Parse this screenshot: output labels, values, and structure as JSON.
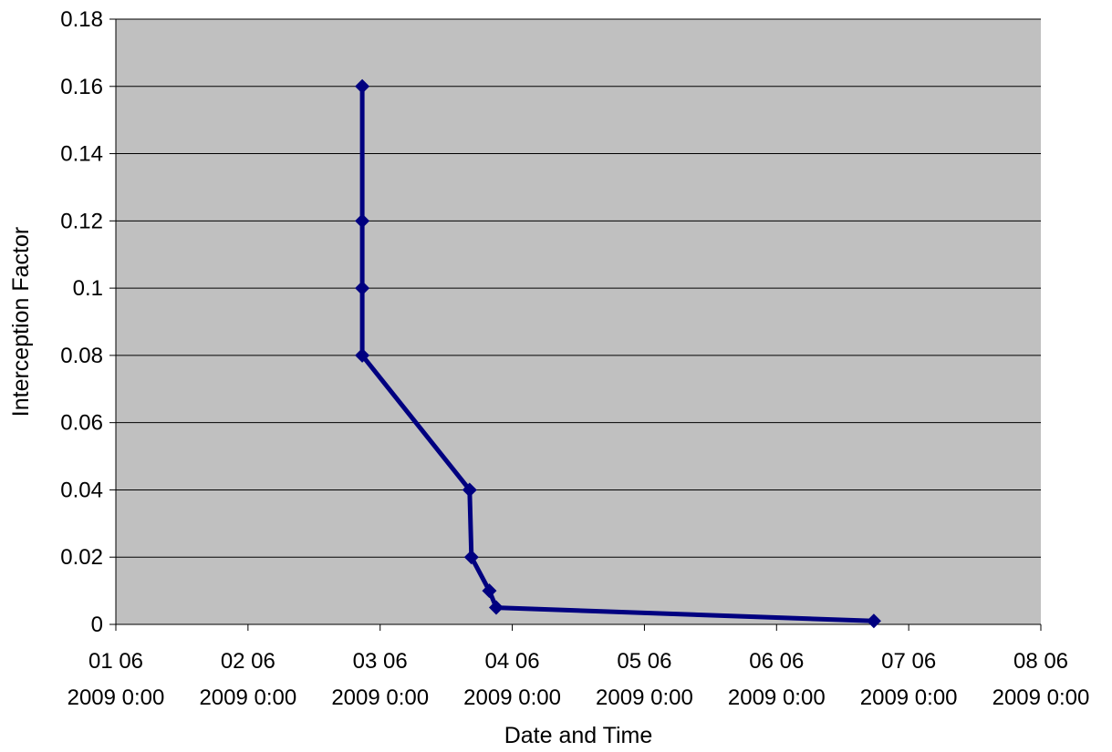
{
  "chart_data": {
    "type": "line",
    "xlabel": "Date and Time",
    "ylabel": "Interception Factor",
    "ylim": [
      0,
      0.18
    ],
    "yticks": [
      "0",
      "0.02",
      "0.04",
      "0.06",
      "0.08",
      "0.1",
      "0.12",
      "0.14",
      "0.16",
      "0.18"
    ],
    "ytick_values": [
      0,
      0.02,
      0.04,
      0.06,
      0.08,
      0.1,
      0.12,
      0.14,
      0.16,
      0.18
    ],
    "xlim": [
      "2009-06-01T00:00",
      "2009-06-08T00:00"
    ],
    "xticks": [
      {
        "line1": "01 06",
        "line2": "2009 0:00",
        "date": "2009-06-01T00:00"
      },
      {
        "line1": "02 06",
        "line2": "2009 0:00",
        "date": "2009-06-02T00:00"
      },
      {
        "line1": "03 06",
        "line2": "2009 0:00",
        "date": "2009-06-03T00:00"
      },
      {
        "line1": "04 06",
        "line2": "2009 0:00",
        "date": "2009-06-04T00:00"
      },
      {
        "line1": "05 06",
        "line2": "2009 0:00",
        "date": "2009-06-05T00:00"
      },
      {
        "line1": "06 06",
        "line2": "2009 0:00",
        "date": "2009-06-06T00:00"
      },
      {
        "line1": "07 06",
        "line2": "2009 0:00",
        "date": "2009-06-07T00:00"
      },
      {
        "line1": "08 06",
        "line2": "2009 0:00",
        "date": "2009-06-08T00:00"
      }
    ],
    "grid": true,
    "legend": "none",
    "colors": {
      "plot_background": "#c0c0c0",
      "series": "#000080",
      "gridline": "#000000"
    },
    "series": [
      {
        "points": [
          {
            "x": "2009-06-02T20:45",
            "y": 0.16
          },
          {
            "x": "2009-06-02T20:45",
            "y": 0.12
          },
          {
            "x": "2009-06-02T20:45",
            "y": 0.1
          },
          {
            "x": "2009-06-02T20:45",
            "y": 0.08
          },
          {
            "x": "2009-06-03T16:15",
            "y": 0.04
          },
          {
            "x": "2009-06-03T16:35",
            "y": 0.02
          },
          {
            "x": "2009-06-03T19:50",
            "y": 0.01
          },
          {
            "x": "2009-06-03T21:05",
            "y": 0.005
          },
          {
            "x": "2009-06-06T17:40",
            "y": 0.001
          }
        ]
      }
    ]
  }
}
